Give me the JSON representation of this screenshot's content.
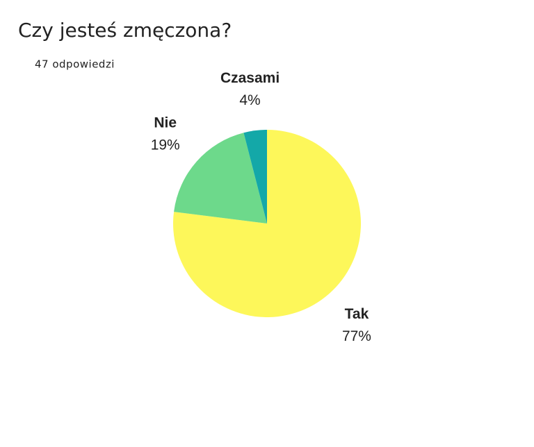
{
  "chart_data": {
    "type": "pie",
    "title": "Czy jesteś zmęczona?",
    "subtitle": "47 odpowiedzi",
    "categories": [
      "Tak",
      "Nie",
      "Czasami"
    ],
    "values": [
      77,
      19,
      4
    ],
    "value_labels": [
      "77%",
      "19%",
      "4%"
    ],
    "colors": [
      "#fdf75a",
      "#6dd98b",
      "#14a8a8"
    ]
  }
}
